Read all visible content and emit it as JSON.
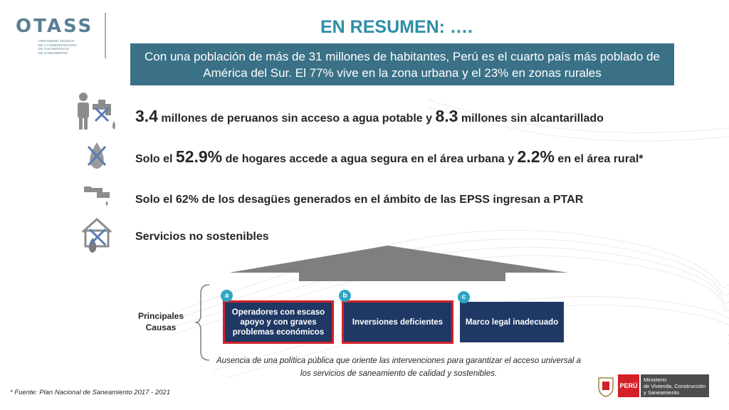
{
  "logo": {
    "name": "OTASS",
    "subtitle_lines": [
      "ORGANISMO TÉCNICO",
      "DE LA ADMINISTRACIÓN",
      "DE LOS SERVICIOS",
      "DE SANEAMIENTO"
    ]
  },
  "title": "EN RESUMEN: ….",
  "summary": "Con una población de más de 31 millones de habitantes, Perú es el cuarto país más poblado de América del Sur. El 77% vive en la zona urbana y el 23% en zonas rurales",
  "stats": [
    {
      "icon": "person-faucet-crossed-icon",
      "num1": "3.4",
      "text1": " millones de peruanos sin acceso a agua potable y ",
      "num2": "8.3",
      "text2": " millones sin alcantarillado"
    },
    {
      "icon": "water-drop-crossed-icon",
      "pre": "Solo el ",
      "num1": "52.9%",
      "text1": " de hogares accede a agua segura en el área urbana y ",
      "num2": "2.2%",
      "text2": " en el área rural*"
    },
    {
      "icon": "pipe-drip-icon",
      "text": "Solo el 62% de los desagües generados en el ámbito de las EPSS ingresan a PTAR"
    },
    {
      "icon": "house-drop-crossed-icon",
      "text": "Servicios no sostenibles"
    }
  ],
  "causes_label": "Principales Causas",
  "causes": [
    {
      "badge": "a",
      "label": "Operadores con escaso apoyo y con graves problemas  económicos"
    },
    {
      "badge": "b",
      "label": "Inversiones deficientes"
    },
    {
      "badge": "c",
      "label": "Marco legal inadecuado"
    }
  ],
  "conclusion": "Ausencia de una política pública que oriente las intervenciones para garantizar el acceso universal a los servicios de saneamiento de calidad y sostenibles.",
  "source": "* Fuente: Plan Nacional de Saneamiento 2017 - 2021",
  "ministry": {
    "peru": "PERÚ",
    "lines": [
      "Ministerio",
      "de Vivienda, Construcción",
      "y Saneamiento"
    ]
  },
  "colors": {
    "title": "#2d8fa6",
    "summary_bg": "#3a7186",
    "cause_bg": "#1f3864",
    "highlight": "#d42027",
    "badge": "#2fa6c4"
  }
}
